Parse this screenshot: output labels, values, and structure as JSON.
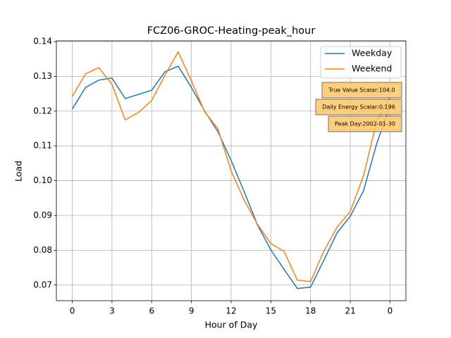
{
  "chart_data": {
    "type": "line",
    "title": "FCZ06-GROC-Heating-peak_hour",
    "xlabel": "Hour of Day",
    "ylabel": "Load",
    "x": [
      0,
      1,
      2,
      3,
      4,
      5,
      6,
      7,
      8,
      9,
      10,
      11,
      12,
      13,
      14,
      15,
      16,
      17,
      18,
      19,
      20,
      21,
      22,
      23,
      24
    ],
    "series": [
      {
        "name": "Weekday",
        "color": "#1f77b4",
        "values": [
          0.1206,
          0.1268,
          0.1289,
          0.1295,
          0.1236,
          0.1248,
          0.126,
          0.1313,
          0.1329,
          0.1268,
          0.12,
          0.1141,
          0.1058,
          0.0967,
          0.0872,
          0.0801,
          0.0745,
          0.069,
          0.0694,
          0.0771,
          0.085,
          0.0898,
          0.0971,
          0.1107,
          0.1216
        ]
      },
      {
        "name": "Weekend",
        "color": "#ff7f0e",
        "values": [
          0.1242,
          0.1307,
          0.1325,
          0.1277,
          0.1175,
          0.1196,
          0.123,
          0.1303,
          0.137,
          0.1287,
          0.1198,
          0.1149,
          0.1028,
          0.0943,
          0.0874,
          0.0819,
          0.0797,
          0.0714,
          0.071,
          0.0797,
          0.0866,
          0.0912,
          0.1014,
          0.1171,
          0.124
        ]
      }
    ],
    "xlim": [
      -1.2,
      25.2
    ],
    "xticks": [
      0,
      3,
      6,
      9,
      12,
      15,
      18,
      21,
      {
        "value": 24,
        "label": "0"
      }
    ],
    "ylim": [
      0.0655,
      0.1402
    ],
    "yticks": [
      0.07,
      0.08,
      0.09,
      {
        "value": 0.1,
        "label": "0.10"
      },
      0.11,
      0.12,
      0.13,
      0.14
    ],
    "grid": true,
    "legend": "upper right",
    "annotations": [
      "True Value Scalar:104.0",
      "Daily Energy Scalar:0.196",
      "Peak Day:2002-01-30"
    ],
    "annotation_color": "#ffc766"
  }
}
